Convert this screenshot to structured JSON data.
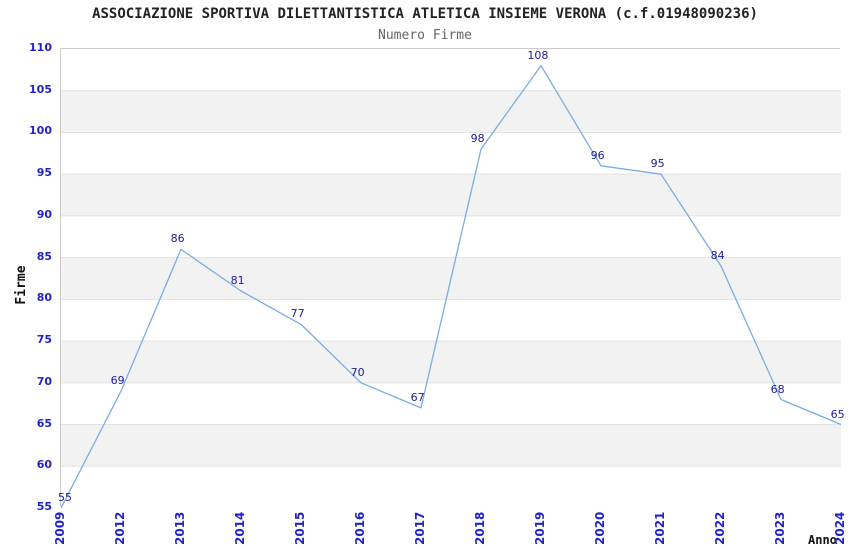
{
  "chart_data": {
    "type": "line",
    "title": "ASSOCIAZIONE SPORTIVA DILETTANTISTICA ATLETICA INSIEME VERONA (c.f.01948090236)",
    "subtitle": "Numero Firme",
    "xlabel": "Anno",
    "ylabel": "Firme",
    "categories": [
      "2009",
      "2012",
      "2013",
      "2014",
      "2015",
      "2016",
      "2017",
      "2018",
      "2019",
      "2020",
      "2021",
      "2022",
      "2023",
      "2024"
    ],
    "values": [
      55,
      69,
      86,
      81,
      77,
      70,
      67,
      98,
      108,
      96,
      95,
      84,
      68,
      65
    ],
    "ylim": [
      55,
      110
    ],
    "ytick_step": 5,
    "yticks": [
      55,
      60,
      65,
      70,
      75,
      80,
      85,
      90,
      95,
      100,
      105,
      110
    ],
    "grid": "horizontal-bands-alternating",
    "legend": "none",
    "data_labels_visible": true,
    "colors": {
      "line": "#79ade3",
      "data_label": "#1b1b99",
      "tick_label": "#2222cc",
      "band_white": "#ffffff",
      "band_gray": "#f2f2f2",
      "gridline": "#e2e2e2",
      "plot_border": "#cbcbcb",
      "title": "#222222",
      "subtitle": "#666666",
      "axis_title": "#111111"
    }
  }
}
